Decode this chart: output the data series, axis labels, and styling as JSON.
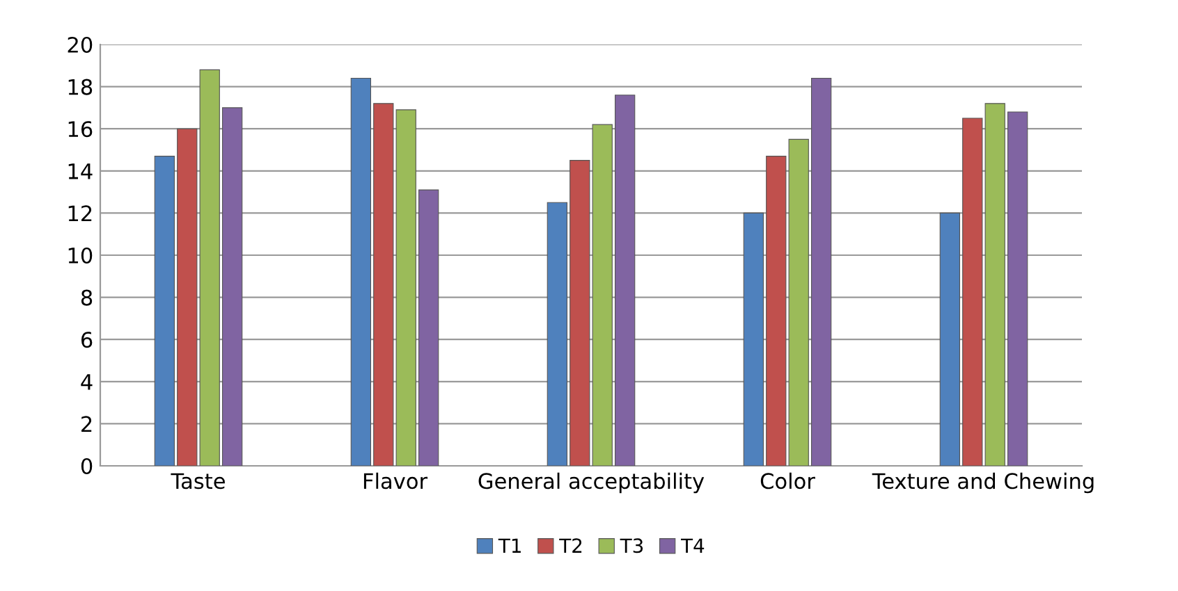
{
  "chart_data": {
    "type": "bar",
    "categories": [
      "Taste",
      "Flavor",
      "General acceptability",
      "Color",
      "Texture and Chewing"
    ],
    "series": [
      {
        "name": "T1",
        "color": "#4f81bd",
        "values": [
          14.7,
          18.4,
          12.5,
          12.0,
          12.0
        ]
      },
      {
        "name": "T2",
        "color": "#c0504d",
        "values": [
          16.0,
          17.2,
          14.5,
          14.7,
          16.5
        ]
      },
      {
        "name": "T3",
        "color": "#9bbb59",
        "values": [
          18.8,
          16.9,
          16.2,
          15.5,
          17.2
        ]
      },
      {
        "name": "T4",
        "color": "#8064a2",
        "values": [
          17.0,
          13.1,
          17.6,
          18.4,
          16.8
        ]
      }
    ],
    "ylim": [
      0,
      20
    ],
    "yticks": [
      0,
      2,
      4,
      6,
      8,
      10,
      12,
      14,
      16,
      18,
      20
    ],
    "grid": "y",
    "legend": "bottom"
  }
}
